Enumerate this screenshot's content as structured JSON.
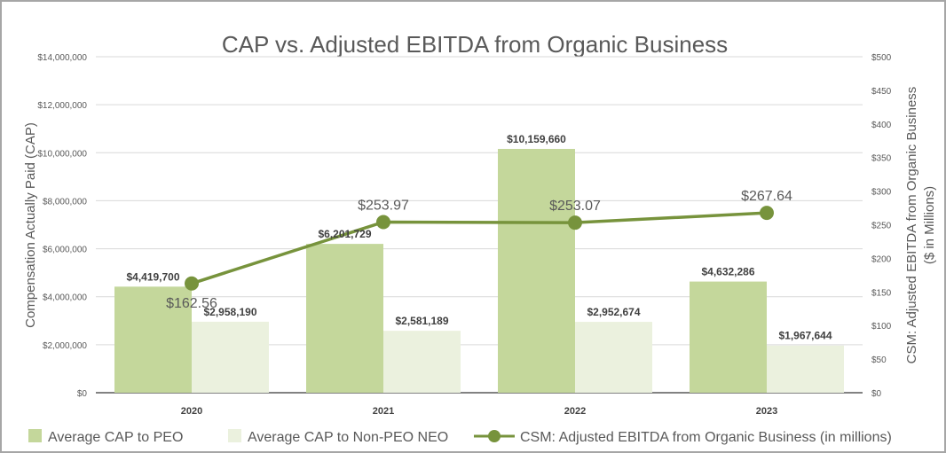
{
  "chart_data": {
    "type": "bar+line",
    "title": "CAP vs. Adjusted EBITDA from Organic Business",
    "categories": [
      "2020",
      "2021",
      "2022",
      "2023"
    ],
    "y_left": {
      "label": "Compensation Actually Paid (CAP)",
      "range": [
        0,
        14000000
      ],
      "ticks": [
        "$0",
        "$2,000,000",
        "$4,000,000",
        "$6,000,000",
        "$8,000,000",
        "$10,000,000",
        "$12,000,000",
        "$14,000,000"
      ]
    },
    "y_right": {
      "label_line1": "CSM: Adjusted EBITDA from Organic Business",
      "label_line2": "($ in Millions)",
      "range": [
        0,
        500
      ],
      "ticks": [
        "$0",
        "$50",
        "$100",
        "$150",
        "$200",
        "$250",
        "$300",
        "$350",
        "$400",
        "$450",
        "$500"
      ]
    },
    "grid": true,
    "legend_position": "bottom",
    "series": [
      {
        "name": "Average CAP to PEO",
        "type": "bar",
        "axis": "left",
        "color": "#c4d79b",
        "values": [
          4419700,
          6201729,
          10159660,
          4632286
        ],
        "labels": [
          "$4,419,700",
          "$6,201,729",
          "$10,159,660",
          "$4,632,286"
        ]
      },
      {
        "name": "Average CAP to Non-PEO NEO",
        "type": "bar",
        "axis": "left",
        "color": "#ebf1de",
        "values": [
          2958190,
          2581189,
          2952674,
          1967644
        ],
        "labels": [
          "$2,958,190",
          "$2,581,189",
          "$2,952,674",
          "$1,967,644"
        ]
      },
      {
        "name": "CSM: Adjusted EBITDA from Organic Business (in millions)",
        "type": "line",
        "axis": "right",
        "color": "#77933c",
        "values": [
          162.56,
          253.97,
          253.07,
          267.64
        ],
        "labels": [
          "$162.56",
          "$253.97",
          "$253.07",
          "$267.64"
        ]
      }
    ]
  }
}
